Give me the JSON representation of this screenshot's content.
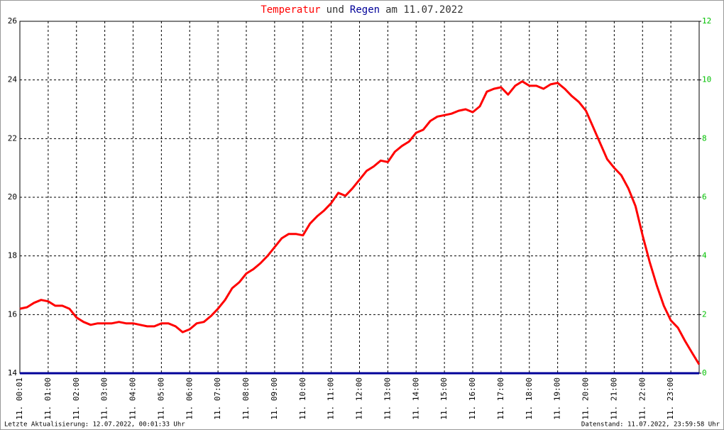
{
  "chart_data": {
    "type": "line",
    "title_parts": [
      {
        "text": "Temperatur",
        "color": "#ff0000"
      },
      {
        "text": "und",
        "color": "#333333"
      },
      {
        "text": "Regen",
        "color": "#000099"
      },
      {
        "text": "am 11.07.2022",
        "color": "#333333"
      }
    ],
    "footer_left": "Letzte Aktualisierung: 12.07.2022, 00:01:33 Uhr",
    "footer_right": "Datenstand: 11.07.2022, 23:59:58 Uhr",
    "xlim": [
      0,
      24
    ],
    "xticks": [
      {
        "value": 0,
        "label": "11. 00:01"
      },
      {
        "value": 1,
        "label": "11. 01:00"
      },
      {
        "value": 2,
        "label": "11. 02:00"
      },
      {
        "value": 3,
        "label": "11. 03:00"
      },
      {
        "value": 4,
        "label": "11. 04:00"
      },
      {
        "value": 5,
        "label": "11. 05:00"
      },
      {
        "value": 6,
        "label": "11. 06:00"
      },
      {
        "value": 7,
        "label": "11. 07:00"
      },
      {
        "value": 8,
        "label": "11. 08:00"
      },
      {
        "value": 9,
        "label": "11. 09:00"
      },
      {
        "value": 10,
        "label": "11. 10:00"
      },
      {
        "value": 11,
        "label": "11. 11:00"
      },
      {
        "value": 12,
        "label": "11. 12:00"
      },
      {
        "value": 13,
        "label": "11. 13:00"
      },
      {
        "value": 14,
        "label": "11. 14:00"
      },
      {
        "value": 15,
        "label": "11. 15:00"
      },
      {
        "value": 16,
        "label": "11. 16:00"
      },
      {
        "value": 17,
        "label": "11. 17:00"
      },
      {
        "value": 18,
        "label": "11. 18:00"
      },
      {
        "value": 19,
        "label": "11. 19:00"
      },
      {
        "value": 20,
        "label": "11. 20:00"
      },
      {
        "value": 21,
        "label": "11. 21:00"
      },
      {
        "value": 22,
        "label": "11. 22:00"
      },
      {
        "value": 23,
        "label": "11. 23:00"
      }
    ],
    "ylim": [
      14,
      26
    ],
    "yticks": [
      14,
      16,
      18,
      20,
      22,
      24,
      26
    ],
    "y2lim": [
      0,
      12
    ],
    "y2ticks": [
      0,
      2,
      4,
      6,
      8,
      10,
      12
    ],
    "y2tick_color": "#00c000",
    "grid": true,
    "series": [
      {
        "name": "Temperatur",
        "color": "#ff0000",
        "x": [
          0,
          0.25,
          0.5,
          0.75,
          1,
          1.25,
          1.5,
          1.75,
          2,
          2.25,
          2.5,
          2.75,
          3,
          3.25,
          3.5,
          3.75,
          4,
          4.25,
          4.5,
          4.75,
          5,
          5.25,
          5.5,
          5.75,
          6,
          6.25,
          6.5,
          6.75,
          7,
          7.25,
          7.5,
          7.75,
          8,
          8.25,
          8.5,
          8.75,
          9,
          9.25,
          9.5,
          9.75,
          10,
          10.25,
          10.5,
          10.75,
          11,
          11.25,
          11.5,
          11.75,
          12,
          12.25,
          12.5,
          12.75,
          13,
          13.25,
          13.5,
          13.75,
          14,
          14.25,
          14.5,
          14.75,
          15,
          15.25,
          15.5,
          15.75,
          16,
          16.25,
          16.5,
          16.75,
          17,
          17.25,
          17.5,
          17.75,
          18,
          18.25,
          18.5,
          18.75,
          19,
          19.25,
          19.5,
          19.75,
          20,
          20.25,
          20.5,
          20.75,
          21,
          21.25,
          21.5,
          21.75,
          22,
          22.25,
          22.5,
          22.75,
          23,
          23.25,
          23.5,
          23.75,
          24
        ],
        "values": [
          16.2,
          16.25,
          16.4,
          16.5,
          16.45,
          16.3,
          16.3,
          16.2,
          15.9,
          15.75,
          15.65,
          15.7,
          15.7,
          15.7,
          15.75,
          15.7,
          15.7,
          15.65,
          15.6,
          15.6,
          15.7,
          15.7,
          15.6,
          15.4,
          15.5,
          15.7,
          15.75,
          15.95,
          16.2,
          16.5,
          16.9,
          17.1,
          17.4,
          17.55,
          17.75,
          18.0,
          18.3,
          18.6,
          18.75,
          18.75,
          18.7,
          19.1,
          19.35,
          19.55,
          19.8,
          20.15,
          20.05,
          20.3,
          20.6,
          20.9,
          21.05,
          21.25,
          21.2,
          21.55,
          21.75,
          21.9,
          22.2,
          22.3,
          22.6,
          22.75,
          22.8,
          22.85,
          22.95,
          23.0,
          22.9,
          23.1,
          23.6,
          23.7,
          23.75,
          23.5,
          23.8,
          23.95,
          23.8,
          23.8,
          23.7,
          23.85,
          23.9,
          23.7,
          23.45,
          23.25,
          22.95,
          22.4,
          21.85,
          21.3,
          21.0,
          20.75,
          20.3,
          19.7,
          18.7,
          17.8,
          17.0,
          16.3,
          15.8,
          15.55,
          15.1,
          14.7,
          14.3
        ]
      },
      {
        "name": "Regen",
        "color": "#000099",
        "axis": "y2",
        "x": [
          0,
          24
        ],
        "values": [
          0,
          0
        ]
      }
    ]
  }
}
